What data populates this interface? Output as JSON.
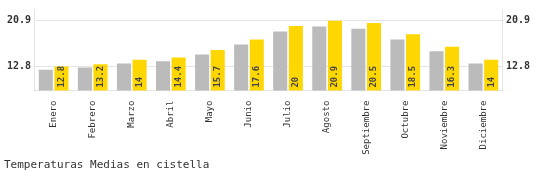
{
  "chart_data": {
    "type": "bar",
    "title": "Temperaturas Medias en cistella",
    "categories": [
      "Enero",
      "Febrero",
      "Marzo",
      "Abril",
      "Mayo",
      "Junio",
      "Julio",
      "Agosto",
      "Septiembre",
      "Octubre",
      "Noviembre",
      "Diciembre"
    ],
    "series": [
      {
        "color": "#BBBBBB",
        "values": [
          12.2,
          12.6,
          13.3,
          13.7,
          14.9,
          16.7,
          19.0,
          19.9,
          19.5,
          17.6,
          15.5,
          13.3
        ]
      },
      {
        "color": "#FFD700",
        "values": [
          12.8,
          13.2,
          14.0,
          14.4,
          15.7,
          17.6,
          20.0,
          20.9,
          20.5,
          18.5,
          16.3,
          14.0
        ],
        "data_labels": true
      }
    ],
    "ylim": [
      8.5,
      23.0
    ],
    "yticks": [
      12.8,
      20.9
    ],
    "grid": true
  }
}
